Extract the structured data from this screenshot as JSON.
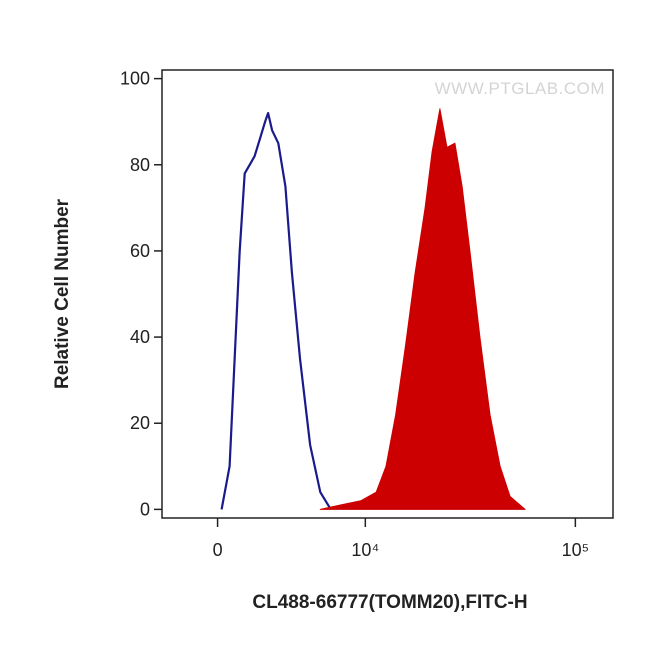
{
  "chart_data": {
    "type": "histogram-overlay",
    "watermark": "WWW.PTGLAB.COM",
    "xlabel": "CL488-66777(TOMM20),FITC-H",
    "ylabel": "Relative Cell Number",
    "xscale": "asinh",
    "xlim": [
      -2700,
      150000
    ],
    "xticks": [
      0,
      {
        "value": 10000,
        "label": "10⁴"
      },
      {
        "value": 100000,
        "label": "10⁵"
      }
    ],
    "ylim": [
      -2,
      102
    ],
    "yticks": [
      0,
      20,
      40,
      60,
      80,
      100
    ],
    "series": [
      {
        "color": "#1a1a8c",
        "filled": false,
        "x": [
          183,
          553,
          1021,
          1262,
          1500,
          1740,
          2006,
          2270,
          2430,
          2640,
          2985,
          3390,
          3780,
          4290,
          4970,
          5720,
          6570
        ],
        "values": [
          0,
          10,
          60,
          78,
          80,
          82,
          86,
          90,
          92,
          88,
          85,
          75,
          55,
          35,
          15,
          4,
          0
        ]
      },
      {
        "color": "#cc0000",
        "filled": true,
        "x": [
          5720,
          7370,
          9480,
          11340,
          12690,
          14150,
          15800,
          17600,
          19630,
          21190,
          23100,
          24950,
          27200,
          29400,
          32000,
          35700,
          39800,
          44400,
          49500,
          58200
        ],
        "values": [
          0,
          1,
          2,
          4,
          10,
          22,
          38,
          55,
          70,
          83,
          93,
          84,
          85,
          75,
          60,
          40,
          22,
          10,
          3,
          0
        ]
      }
    ]
  }
}
